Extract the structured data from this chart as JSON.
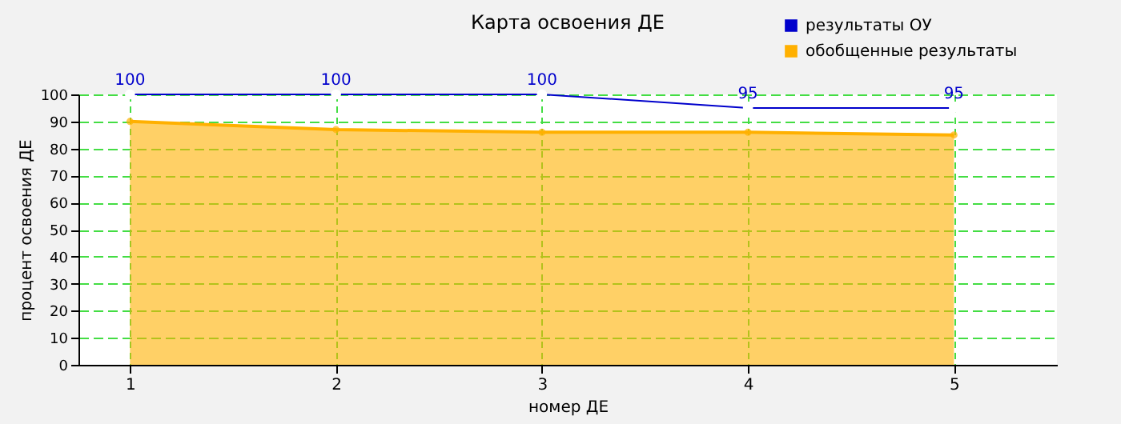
{
  "chart_data": {
    "type": "line",
    "title": "Карта освоения ДЕ",
    "xlabel": "номер ДЕ",
    "ylabel": "процент освоения ДЕ",
    "x": [
      1,
      2,
      3,
      4,
      5
    ],
    "xlim": [
      0.75,
      5.5
    ],
    "xticks": [
      1,
      2,
      3,
      4,
      5
    ],
    "ylim": [
      0,
      100
    ],
    "yticks": [
      0,
      10,
      20,
      30,
      40,
      50,
      60,
      70,
      80,
      90,
      100
    ],
    "grid": true,
    "legend": "top right",
    "marker": "circle",
    "series": [
      {
        "name": "результаты ОУ",
        "color": "#0000cc",
        "values": [
          100,
          100,
          100,
          95,
          95
        ],
        "data_labels": true
      },
      {
        "name": "обобщенные результаты",
        "color": "#ffb000",
        "type": "area",
        "values": [
          90,
          87,
          86,
          86,
          85
        ]
      }
    ]
  }
}
